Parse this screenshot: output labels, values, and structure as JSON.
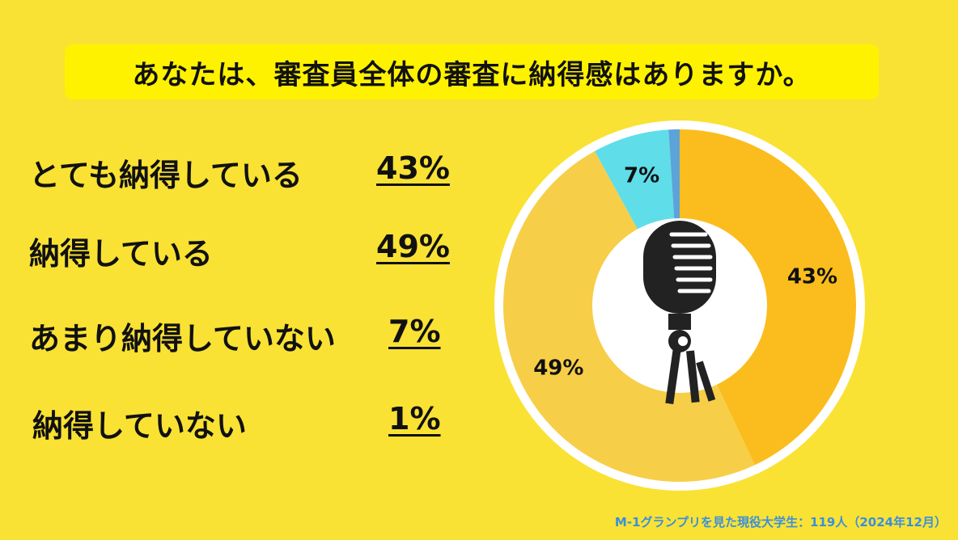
{
  "title": "あなたは、審査員全体の審査に納得感はありますか。",
  "chart_data": {
    "type": "pie",
    "categories": [
      "とても納得している",
      "納得している",
      "あまり納得していない",
      "納得していない"
    ],
    "values": [
      43,
      49,
      7,
      1
    ],
    "value_labels": [
      "43%",
      "49%",
      "7%",
      "1%"
    ],
    "colors": [
      "#fbbd1d",
      "#f7ce47",
      "#5fdde8",
      "#5ba3d9"
    ],
    "style": "donut",
    "center_icon": "microphone-icon"
  },
  "footnote": "M-1グランプリを見た現役大学生：119人（2024年12月）"
}
